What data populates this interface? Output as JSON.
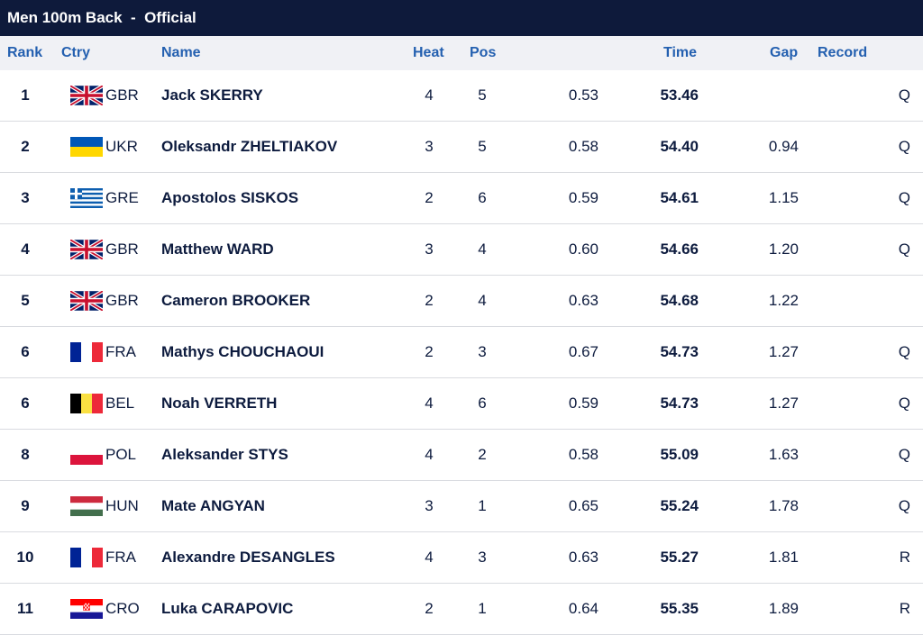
{
  "title": {
    "event": "Men 100m Back",
    "separator": "-",
    "status": "Official"
  },
  "columns": {
    "rank": "Rank",
    "ctry": "Ctry",
    "name": "Name",
    "heat": "Heat",
    "pos": "Pos",
    "time": "Time",
    "gap": "Gap",
    "record": "Record"
  },
  "rows": [
    {
      "rank": "1",
      "flag": "gbr-flag-icon",
      "ctry": "GBR",
      "name": "Jack SKERRY",
      "heat": "4",
      "pos": "5",
      "rt": "0.53",
      "time": "53.46",
      "gap": "",
      "record": "Q"
    },
    {
      "rank": "2",
      "flag": "ukr-flag-icon",
      "ctry": "UKR",
      "name": "Oleksandr ZHELTIAKOV",
      "heat": "3",
      "pos": "5",
      "rt": "0.58",
      "time": "54.40",
      "gap": "0.94",
      "record": "Q"
    },
    {
      "rank": "3",
      "flag": "gre-flag-icon",
      "ctry": "GRE",
      "name": "Apostolos SISKOS",
      "heat": "2",
      "pos": "6",
      "rt": "0.59",
      "time": "54.61",
      "gap": "1.15",
      "record": "Q"
    },
    {
      "rank": "4",
      "flag": "gbr-flag-icon",
      "ctry": "GBR",
      "name": "Matthew WARD",
      "heat": "3",
      "pos": "4",
      "rt": "0.60",
      "time": "54.66",
      "gap": "1.20",
      "record": "Q"
    },
    {
      "rank": "5",
      "flag": "gbr-flag-icon",
      "ctry": "GBR",
      "name": "Cameron BROOKER",
      "heat": "2",
      "pos": "4",
      "rt": "0.63",
      "time": "54.68",
      "gap": "1.22",
      "record": ""
    },
    {
      "rank": "6",
      "flag": "fra-flag-icon",
      "ctry": "FRA",
      "name": "Mathys CHOUCHAOUI",
      "heat": "2",
      "pos": "3",
      "rt": "0.67",
      "time": "54.73",
      "gap": "1.27",
      "record": "Q"
    },
    {
      "rank": "6",
      "flag": "bel-flag-icon",
      "ctry": "BEL",
      "name": "Noah VERRETH",
      "heat": "4",
      "pos": "6",
      "rt": "0.59",
      "time": "54.73",
      "gap": "1.27",
      "record": "Q"
    },
    {
      "rank": "8",
      "flag": "pol-flag-icon",
      "ctry": "POL",
      "name": "Aleksander STYS",
      "heat": "4",
      "pos": "2",
      "rt": "0.58",
      "time": "55.09",
      "gap": "1.63",
      "record": "Q"
    },
    {
      "rank": "9",
      "flag": "hun-flag-icon",
      "ctry": "HUN",
      "name": "Mate ANGYAN",
      "heat": "3",
      "pos": "1",
      "rt": "0.65",
      "time": "55.24",
      "gap": "1.78",
      "record": "Q"
    },
    {
      "rank": "10",
      "flag": "fra-flag-icon",
      "ctry": "FRA",
      "name": "Alexandre DESANGLES",
      "heat": "4",
      "pos": "3",
      "rt": "0.63",
      "time": "55.27",
      "gap": "1.81",
      "record": "R"
    },
    {
      "rank": "11",
      "flag": "cro-flag-icon",
      "ctry": "CRO",
      "name": "Luka CARAPOVIC",
      "heat": "2",
      "pos": "1",
      "rt": "0.64",
      "time": "55.35",
      "gap": "1.89",
      "record": "R"
    }
  ],
  "colors": {
    "header_bg": "#0e1a3b",
    "column_header_text": "#2460b0",
    "column_header_bg": "#f0f1f5",
    "text": "#0d1b3e"
  }
}
